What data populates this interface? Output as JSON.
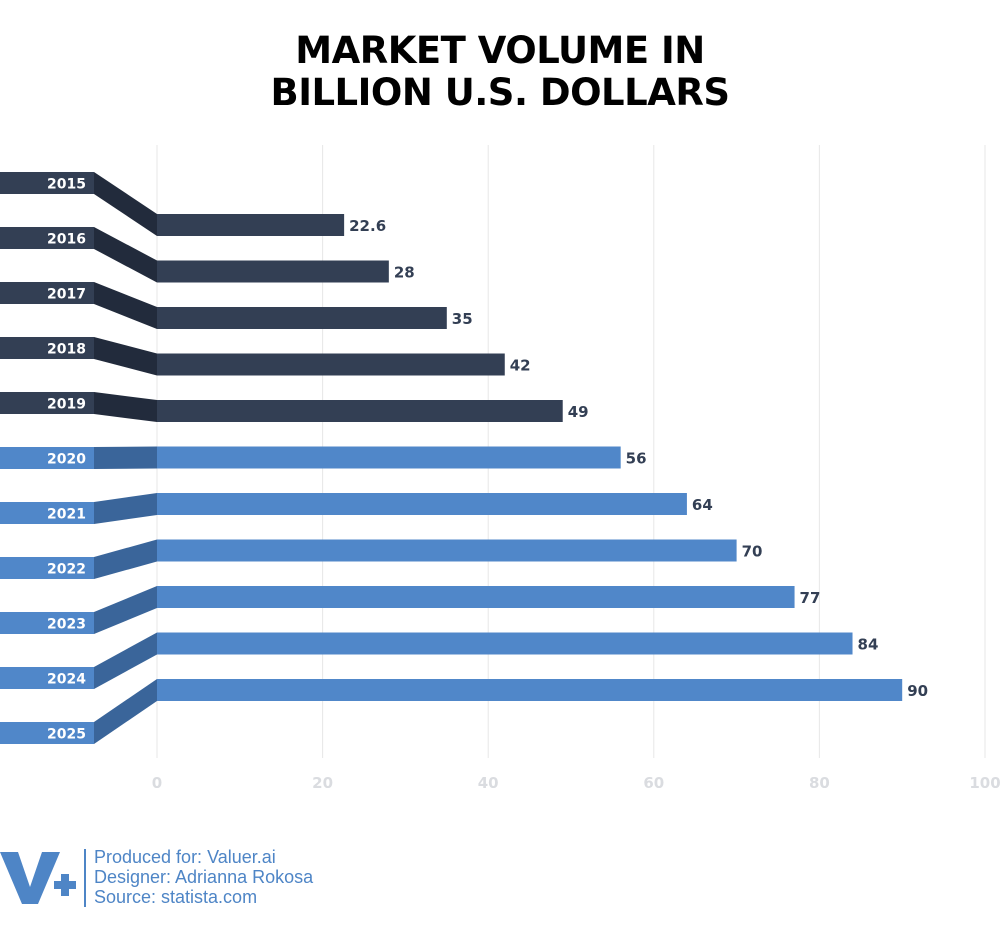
{
  "chart_data": {
    "type": "bar",
    "orientation": "horizontal",
    "title_lines": [
      "MARKET VOLUME IN",
      "BILLION U.S. DOLLARS"
    ],
    "categories": [
      "2015",
      "2016",
      "2017",
      "2018",
      "2019",
      "2020",
      "2021",
      "2022",
      "2023",
      "2024",
      "2025"
    ],
    "values": [
      22.6,
      28,
      35,
      42,
      49,
      56,
      64,
      70,
      77,
      84,
      90
    ],
    "value_labels": [
      "22.6",
      "28",
      "35",
      "42",
      "49",
      "56",
      "64",
      "70",
      "77",
      "84",
      "90"
    ],
    "xlim": [
      0,
      100
    ],
    "x_ticks": [
      0,
      20,
      40,
      60,
      80,
      100
    ],
    "x_tick_labels": [
      "0",
      "20",
      "40",
      "60",
      "80",
      "100"
    ],
    "grid": "vertical",
    "legend": "none",
    "colors": {
      "past": "#333f54",
      "past_connector": "#222b3c",
      "forecast": "#5087c9",
      "forecast_connector": "#3a659a",
      "value_label": "#333f54",
      "tick_label": "#dadce0",
      "grid": "#e7e7e7"
    },
    "forecast_from_index": 5
  },
  "footer": {
    "logo_text": "V+",
    "produced_for": "Produced for: Valuer.ai",
    "designer": "Designer: Adrianna Rokosa",
    "source": "Source: statista.com",
    "color": "#4e85c6"
  }
}
